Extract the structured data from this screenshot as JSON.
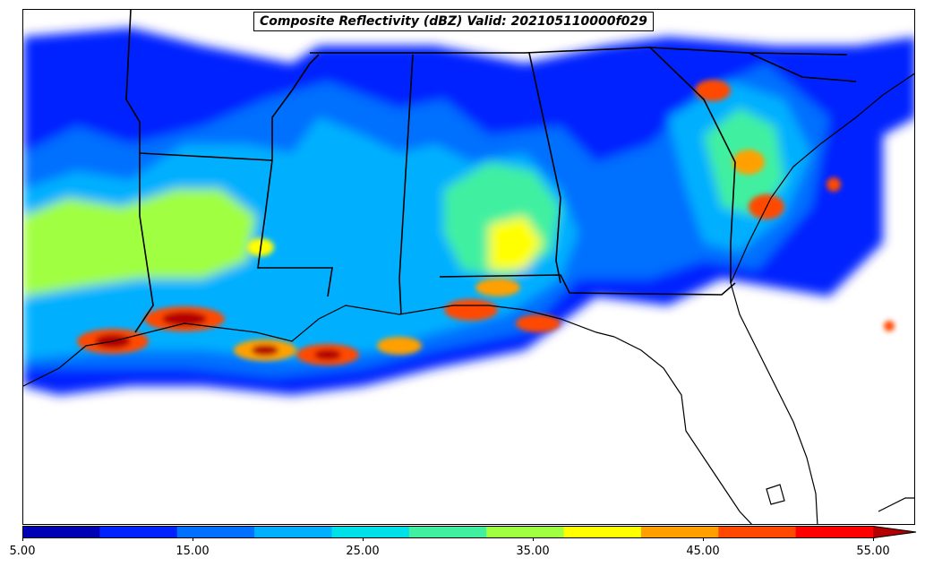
{
  "title": "Composite Reflectivity (dBZ) Valid: 202105110000f029",
  "colorbar": {
    "colors": [
      "#0000b4",
      "#0022ff",
      "#0070ff",
      "#00b0ff",
      "#00e0e8",
      "#40f0a0",
      "#a0ff40",
      "#ffff00",
      "#ffa000",
      "#ff4800",
      "#ff0000",
      "#b40000"
    ],
    "tick_labels": [
      "5.00",
      "15.00",
      "25.00",
      "35.00",
      "45.00",
      "55.00"
    ],
    "min": 5,
    "max": 55,
    "step": 5,
    "extend": "max"
  },
  "colors": {
    "border": "#000000",
    "coast": "#000000",
    "background": "#ffffff"
  }
}
